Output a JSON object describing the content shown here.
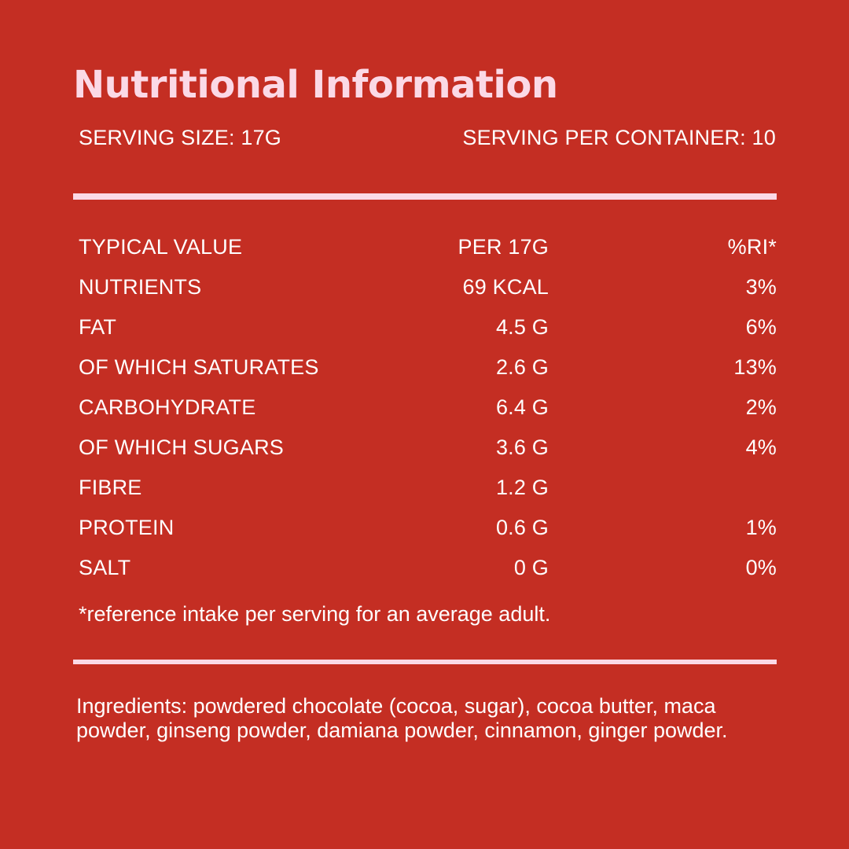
{
  "title": "Nutritional Information",
  "serving": {
    "size": "SERVING SIZE: 17G",
    "per_container": "SERVING PER CONTAINER: 10"
  },
  "table": {
    "header": [
      "TYPICAL VALUE",
      "PER 17G",
      "%RI*"
    ],
    "rows": [
      [
        "NUTRIENTS",
        "69 KCAL",
        "3%"
      ],
      [
        "FAT",
        "4.5 G",
        "6%"
      ],
      [
        "OF WHICH SATURATES",
        "2.6 G",
        "13%"
      ],
      [
        "CARBOHYDRATE",
        "6.4 G",
        "2%"
      ],
      [
        "OF WHICH SUGARS",
        "3.6 G",
        "4%"
      ],
      [
        "FIBRE",
        "1.2 G",
        ""
      ],
      [
        "PROTEIN",
        "0.6 G",
        "1%"
      ],
      [
        "SALT",
        "0 G",
        "0%"
      ]
    ]
  },
  "footnote": "*reference intake per serving for an average adult.",
  "ingredients": "Ingredients: powdered chocolate (cocoa, sugar), cocoa butter, maca powder, ginseng powder, damiana powder, cinnamon, ginger powder.",
  "colors": {
    "background": "#c42e23",
    "title": "#fbd9e6",
    "divider": "#fbd9e6",
    "text": "#ffffff"
  }
}
